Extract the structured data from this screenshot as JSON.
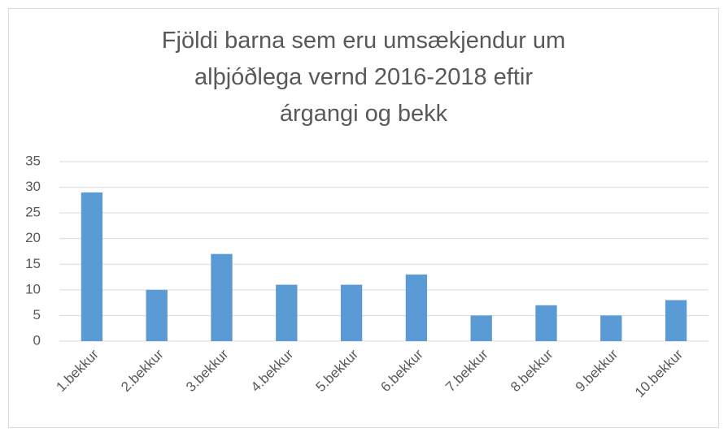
{
  "chart_data": {
    "type": "bar",
    "title": "Fjöldi barna sem eru umsækjendur um alþjóðlega vernd 2016-2018 eftir árgangi og bekk",
    "categories": [
      "1.bekkur",
      "2.bekkur",
      "3.bekkur",
      "4.bekkur",
      "5.bekkur",
      "6.bekkur",
      "7.bekkur",
      "8.bekkur",
      "9.bekkur",
      "10.bekkur"
    ],
    "values": [
      29,
      10,
      17,
      11,
      11,
      13,
      5,
      7,
      5,
      8
    ],
    "color": "#5b9bd5",
    "ylim": [
      0,
      35
    ],
    "yticks": [
      0,
      5,
      10,
      15,
      20,
      25,
      30,
      35
    ],
    "grid": true
  }
}
